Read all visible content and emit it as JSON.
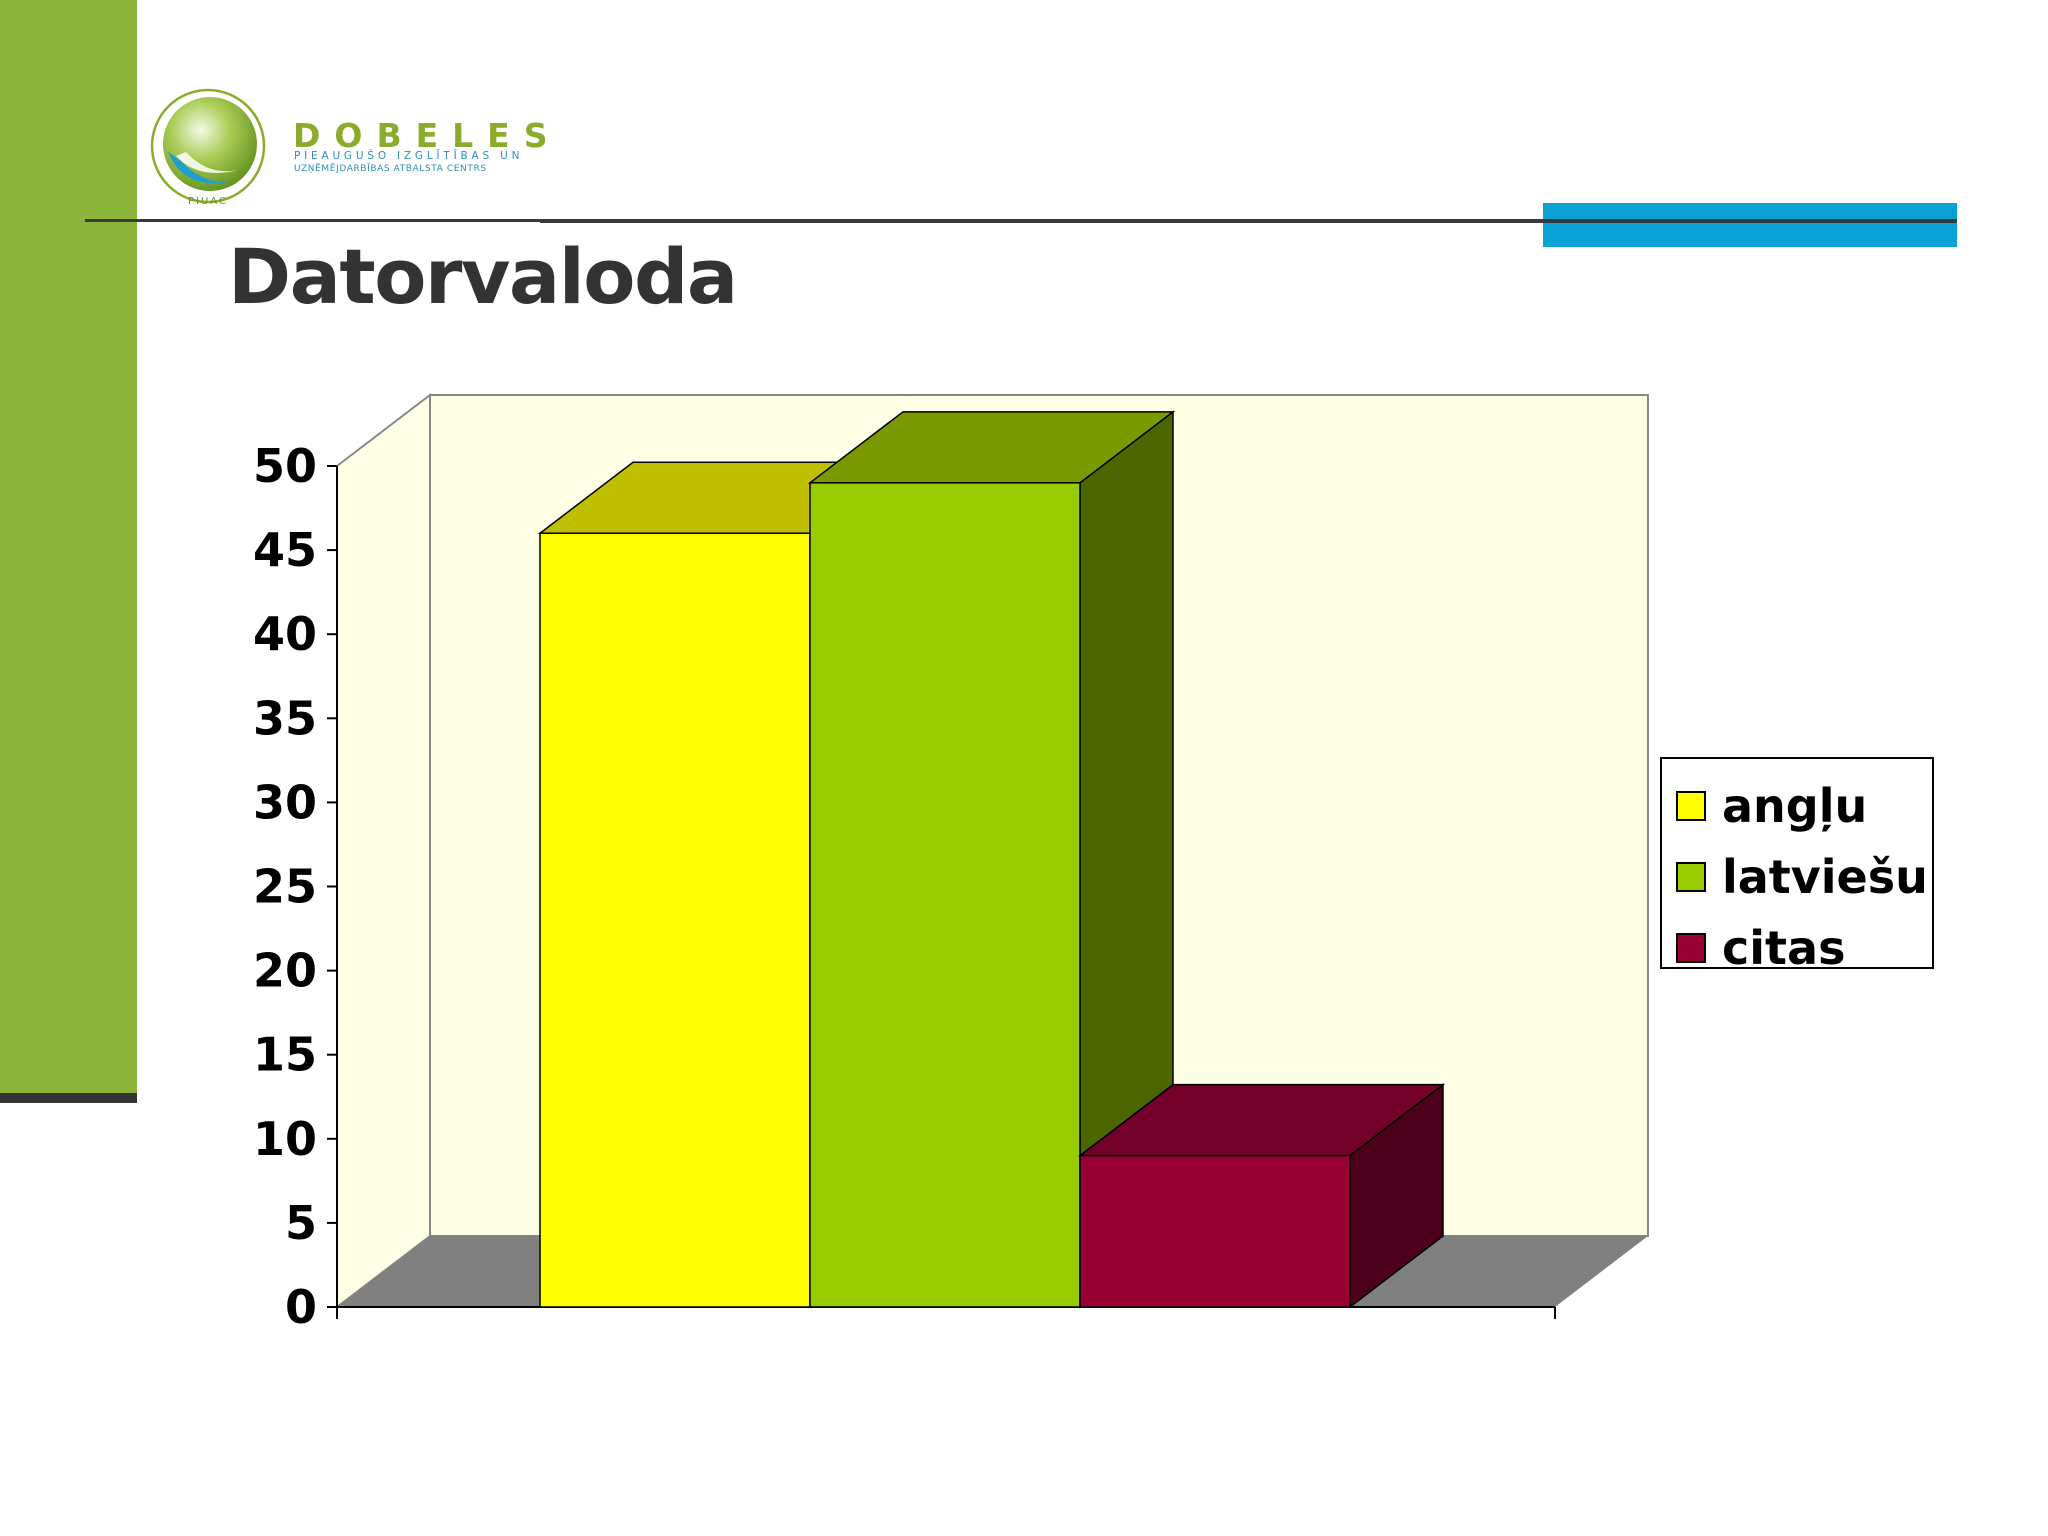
{
  "slide": {
    "title": "Datorvaloda",
    "logo": {
      "name": "DOBELES",
      "line1": "PIEAUGUŠO IZGLĪTĪBAS UN",
      "line2": "UZŅĒMĒJDARBĪBAS ATBALSTA CENTRS",
      "seal": "PIUAC"
    },
    "colors": {
      "sidebar": "#8ab43a",
      "accent_blue": "#0aa2d4",
      "title_text": "#333333"
    }
  },
  "chart_data": {
    "type": "bar",
    "style": "3d-column",
    "title": "",
    "xlabel": "",
    "ylabel": "",
    "ylim": [
      0,
      50
    ],
    "yticks": [
      0,
      5,
      10,
      15,
      20,
      25,
      30,
      35,
      40,
      45,
      50
    ],
    "legend_position": "right",
    "grid": false,
    "plot_background": "#ffffe6",
    "floor_color": "#808080",
    "series": [
      {
        "name": "angļu",
        "values": [
          46
        ],
        "color": "#ffff00",
        "top_color": "#c0c000",
        "side_color": "#a0a000"
      },
      {
        "name": "latviešu",
        "values": [
          49
        ],
        "color": "#99cc00",
        "top_color": "#7a9a00",
        "side_color": "#4d6600"
      },
      {
        "name": "citas",
        "values": [
          9
        ],
        "color": "#990033",
        "top_color": "#720028",
        "side_color": "#4d001c"
      }
    ]
  }
}
